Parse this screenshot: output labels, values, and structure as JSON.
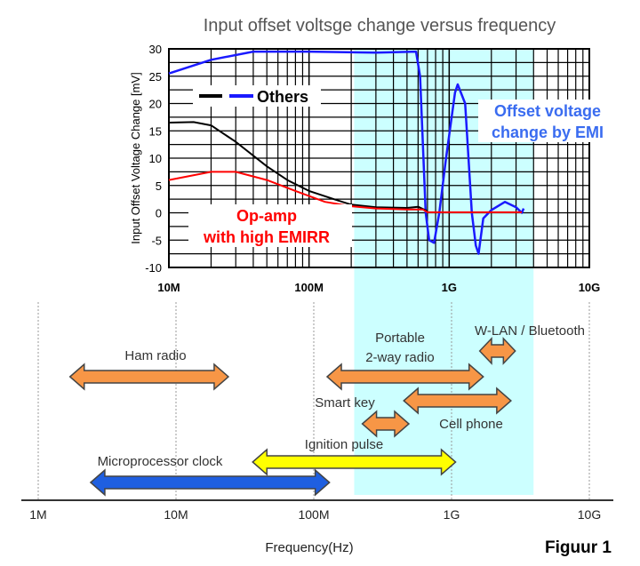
{
  "chart_data": [
    {
      "type": "line",
      "title": "Input offset voltsge change versus frequency",
      "ylabel": "Input Offset Voltage Change [mV]",
      "xlabel": "",
      "xscale": "log",
      "xlim": [
        10000000.0,
        10000000000.0
      ],
      "ylim": [
        -10,
        30
      ],
      "grid": true,
      "xticks": [
        {
          "v": 10000000.0,
          "label": "10M"
        },
        {
          "v": 100000000.0,
          "label": "100M"
        },
        {
          "v": 1000000000.0,
          "label": "1G"
        },
        {
          "v": 10000000000.0,
          "label": "10G"
        }
      ],
      "yticks": [
        30,
        25,
        20,
        15,
        10,
        5,
        0,
        -5,
        -10
      ],
      "legend": {
        "label": "Others",
        "placement": "top-left"
      },
      "annotations": [
        {
          "lines": [
            "Offset voltage",
            "change by EMI"
          ],
          "color": "#3a6cf0"
        },
        {
          "lines": [
            "Op-amp",
            "with high EMIRR"
          ],
          "color": "#ff0000"
        }
      ],
      "series": [
        {
          "color": "#1a1aff",
          "points": [
            [
              10000000.0,
              25.5
            ],
            [
              20000000.0,
              28
            ],
            [
              40000000.0,
              29.5
            ],
            [
              100000000.0,
              29.5
            ],
            [
              300000000.0,
              29.3
            ],
            [
              580000000.0,
              29.5
            ],
            [
              620000000.0,
              25
            ],
            [
              680000000.0,
              0
            ],
            [
              720000000.0,
              -5
            ],
            [
              780000000.0,
              -5.5
            ],
            [
              850000000.0,
              0
            ],
            [
              950000000.0,
              10
            ],
            [
              1100000000.0,
              22
            ],
            [
              1150000000.0,
              23.5
            ],
            [
              1300000000.0,
              20
            ],
            [
              1450000000.0,
              0
            ],
            [
              1550000000.0,
              -6
            ],
            [
              1620000000.0,
              -7.5
            ],
            [
              1750000000.0,
              -1
            ],
            [
              2000000000.0,
              0.5
            ],
            [
              2500000000.0,
              2
            ],
            [
              3000000000.0,
              1
            ],
            [
              3300000000.0,
              0
            ],
            [
              3400000000.0,
              0.8
            ]
          ]
        },
        {
          "color": "#000000",
          "points": [
            [
              10000000.0,
              16.5
            ],
            [
              15000000.0,
              16.6
            ],
            [
              20000000.0,
              16
            ],
            [
              30000000.0,
              13
            ],
            [
              50000000.0,
              8.5
            ],
            [
              70000000.0,
              6
            ],
            [
              100000000.0,
              4
            ],
            [
              150000000.0,
              2.5
            ],
            [
              200000000.0,
              1.5
            ],
            [
              300000000.0,
              1
            ],
            [
              500000000.0,
              0.9
            ],
            [
              600000000.0,
              1.1
            ],
            [
              700000000.0,
              0.3
            ]
          ]
        },
        {
          "color": "#ff0000",
          "points": [
            [
              10000000.0,
              6
            ],
            [
              20000000.0,
              7.5
            ],
            [
              30000000.0,
              7.5
            ],
            [
              50000000.0,
              6
            ],
            [
              80000000.0,
              4
            ],
            [
              130000000.0,
              2
            ],
            [
              200000000.0,
              1.2
            ],
            [
              300000000.0,
              0.8
            ],
            [
              500000000.0,
              0.6
            ],
            [
              650000000.0,
              0.6
            ],
            [
              700000000.0,
              0.1
            ],
            [
              3300000000.0,
              0.1
            ]
          ]
        }
      ]
    },
    {
      "type": "range-arrows",
      "xlabel": "Frequency(Hz)",
      "xscale": "log",
      "xlim": [
        1000000.0,
        10000000000.0
      ],
      "xticks": [
        {
          "v": 1000000.0,
          "label": "1M"
        },
        {
          "v": 10000000.0,
          "label": "10M"
        },
        {
          "v": 100000000.0,
          "label": "100M"
        },
        {
          "v": 1000000000.0,
          "label": "1G"
        },
        {
          "v": 10000000000.0,
          "label": "10G"
        }
      ],
      "ranges": [
        {
          "label": "Ham radio",
          "from": 1700000.0,
          "to": 24000000.0,
          "color": "#f79646"
        },
        {
          "label": "Portable 2-way radio",
          "from": 125000000.0,
          "to": 1700000000.0,
          "color": "#f79646"
        },
        {
          "label": "W-LAN / Bluetooth",
          "from": 1600000000.0,
          "to": 2900000000.0,
          "color": "#f79646"
        },
        {
          "label": "Cell phone",
          "from": 450000000.0,
          "to": 2700000000.0,
          "color": "#f79646"
        },
        {
          "label": "Smart key",
          "from": 225000000.0,
          "to": 490000000.0,
          "color": "#f79646"
        },
        {
          "label": "Ignition pulse",
          "from": 36000000.0,
          "to": 1070000000.0,
          "color": "#ffff00"
        },
        {
          "label": "Microprocessor clock",
          "from": 2400000.0,
          "to": 130000000.0,
          "color": "#1f5fe0"
        }
      ]
    }
  ],
  "highlight_band": {
    "from": 210000000.0,
    "to": 4000000000.0,
    "color": "#ccffff"
  },
  "figure_label": "Figuur 1"
}
